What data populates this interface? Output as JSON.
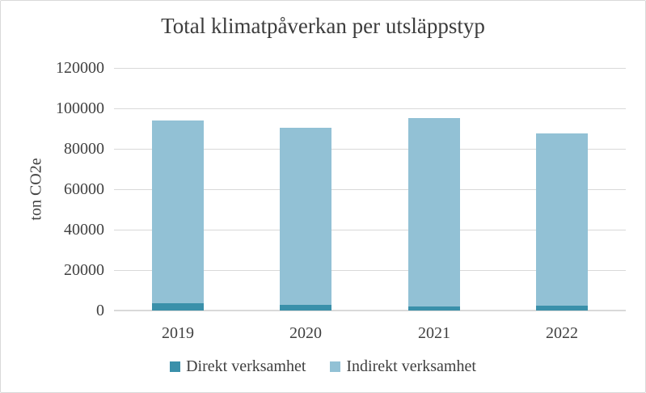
{
  "chart_data": {
    "type": "bar",
    "stacked": true,
    "title": "Total klimatpåverkan per utsläppstyp",
    "ylabel": "ton CO2e",
    "xlabel": "",
    "categories": [
      "2019",
      "2020",
      "2021",
      "2022"
    ],
    "series": [
      {
        "name": "Direkt verksamhet",
        "color": "#3a90aa",
        "values": [
          3600,
          2800,
          2200,
          2400
        ]
      },
      {
        "name": "Indirekt verksamhet",
        "color": "#92c1d5",
        "values": [
          90400,
          87500,
          92900,
          85100
        ]
      }
    ],
    "ylim": [
      0,
      120000
    ],
    "yticks": [
      0,
      20000,
      40000,
      60000,
      80000,
      100000,
      120000
    ],
    "ytick_labels": [
      "0",
      "20000",
      "40000",
      "60000",
      "80000",
      "100000",
      "120000"
    ],
    "grid": true,
    "legend_position": "bottom",
    "colors": {
      "grid": "#d9d9d9",
      "axis": "#d9d9d9",
      "text": "#404040",
      "title": "#3c3c3c",
      "background": "#ffffff",
      "border": "#d9d9d9"
    }
  }
}
